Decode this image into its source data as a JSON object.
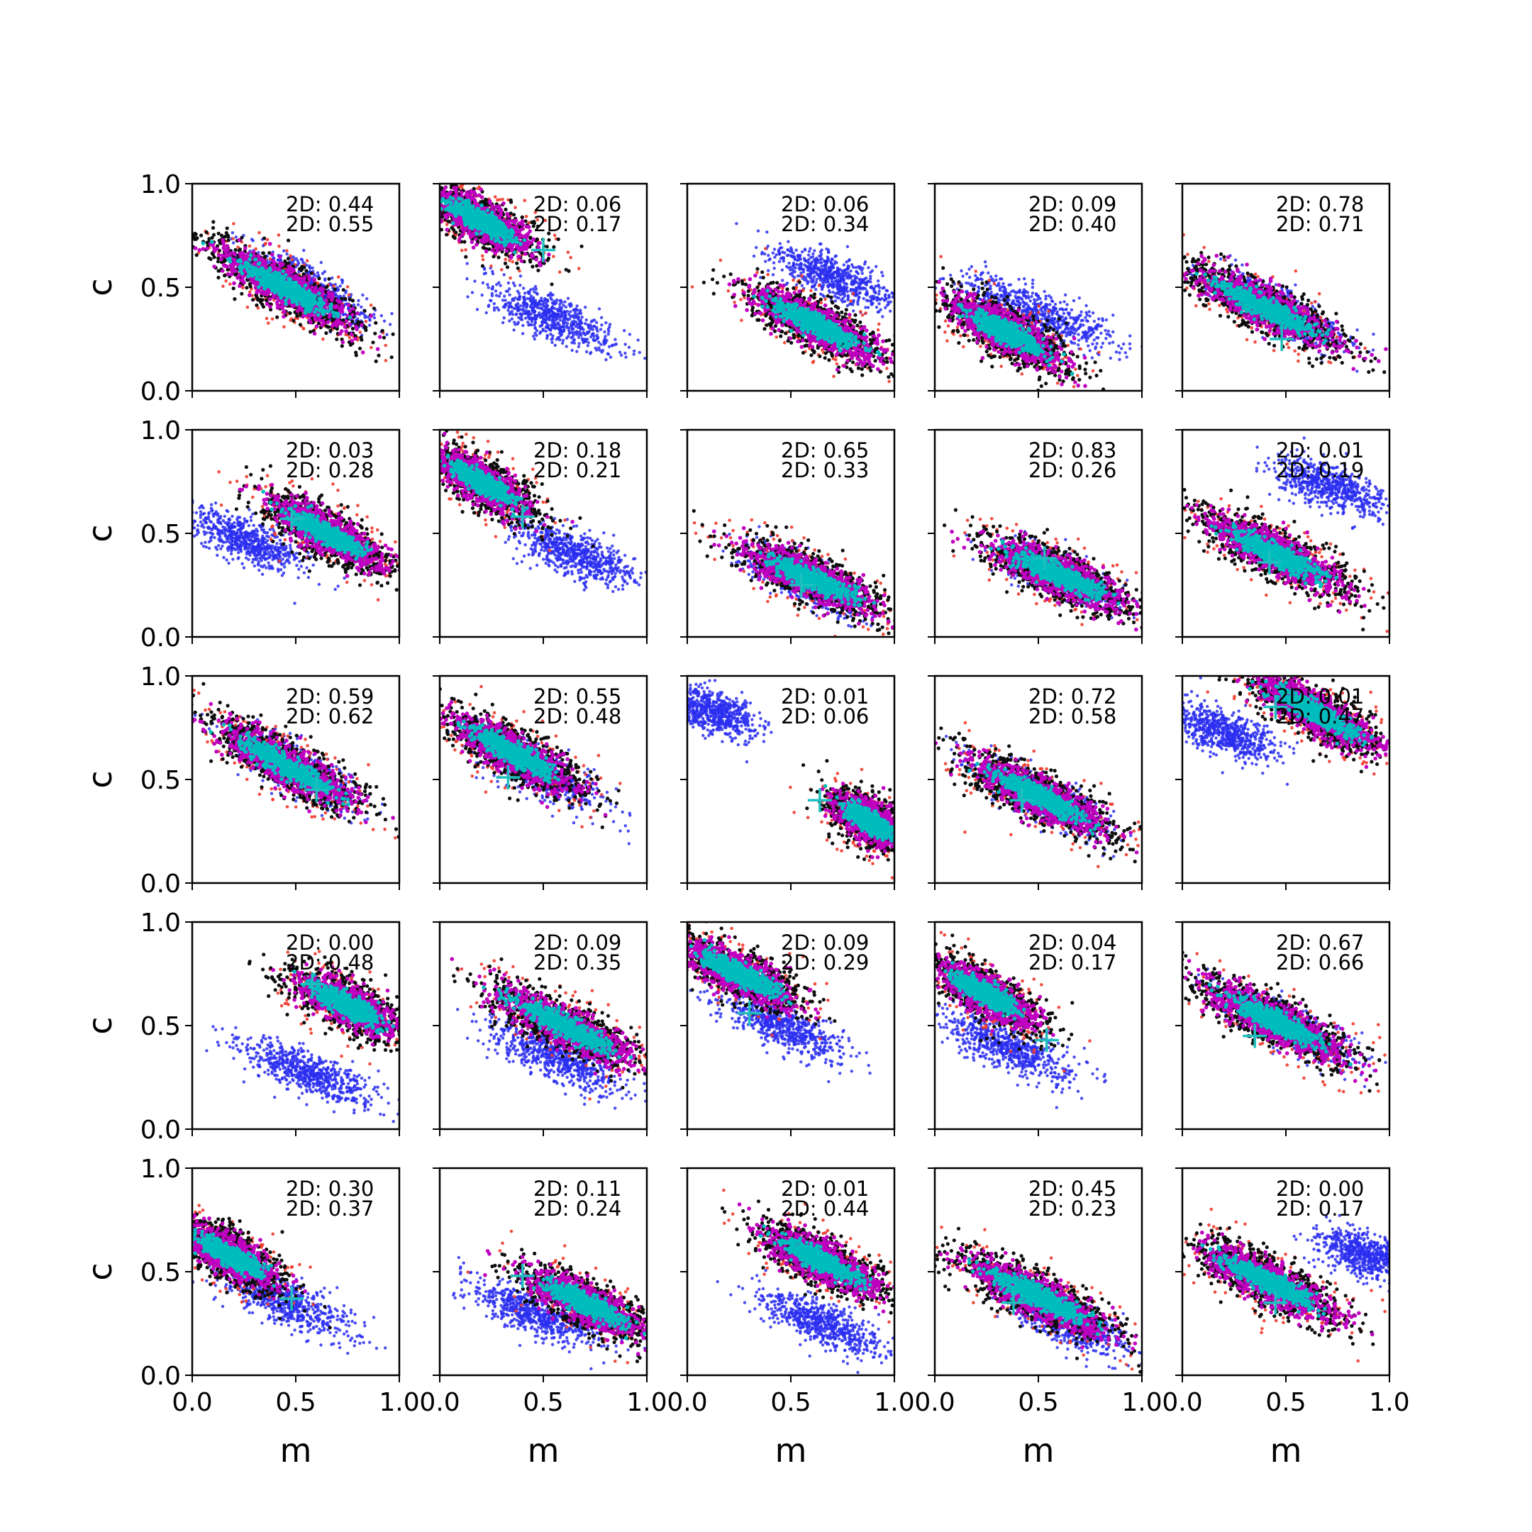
{
  "figure": {
    "rows": 5,
    "cols": 5,
    "shared_x_label": "m",
    "shared_y_label": "c",
    "x_ticks": [
      "0.0",
      "0.5",
      "1.0"
    ],
    "y_ticks": [
      "0.0",
      "0.5",
      "1.0"
    ]
  },
  "colors": {
    "outer": "#f03a2c",
    "mid": "#0d0d0d",
    "inner": "#c000c0",
    "core": "#00bdbd",
    "alt": "#2a2ef0",
    "marker": "#1fbfbf"
  },
  "chart_data": [
    {
      "type": "scatter",
      "row": 0,
      "col": 0,
      "annotations": [
        "2D: 0.44",
        "2D: 0.55"
      ],
      "xlim": [
        0,
        1
      ],
      "ylim": [
        0,
        1
      ],
      "main_center": [
        0.45,
        0.5
      ],
      "main_slope": -0.55,
      "main_spread": 0.55,
      "alt_center": [
        0.55,
        0.5
      ],
      "alt_slope": -0.55,
      "alt_spread": 0.45,
      "marker": null
    },
    {
      "type": "scatter",
      "row": 0,
      "col": 1,
      "annotations": [
        "2D: 0.06",
        "2D: 0.17"
      ],
      "xlim": [
        0,
        1
      ],
      "ylim": [
        0,
        1
      ],
      "main_center": [
        0.2,
        0.82
      ],
      "main_slope": -0.55,
      "main_spread": 0.4,
      "alt_center": [
        0.55,
        0.35
      ],
      "alt_slope": -0.45,
      "alt_spread": 0.45,
      "marker": [
        0.5,
        0.68
      ]
    },
    {
      "type": "scatter",
      "row": 0,
      "col": 2,
      "annotations": [
        "2D: 0.06",
        "2D: 0.34"
      ],
      "xlim": [
        0,
        1
      ],
      "ylim": [
        0,
        1
      ],
      "main_center": [
        0.62,
        0.32
      ],
      "main_slope": -0.5,
      "main_spread": 0.5,
      "alt_center": [
        0.7,
        0.55
      ],
      "alt_slope": -0.4,
      "alt_spread": 0.4,
      "marker": null
    },
    {
      "type": "scatter",
      "row": 0,
      "col": 3,
      "annotations": [
        "2D: 0.09",
        "2D: 0.40"
      ],
      "xlim": [
        0,
        1
      ],
      "ylim": [
        0,
        1
      ],
      "main_center": [
        0.35,
        0.28
      ],
      "main_slope": -0.55,
      "main_spread": 0.45,
      "alt_center": [
        0.5,
        0.38
      ],
      "alt_slope": -0.4,
      "alt_spread": 0.5,
      "marker": null
    },
    {
      "type": "scatter",
      "row": 0,
      "col": 4,
      "annotations": [
        "2D: 0.78",
        "2D: 0.71"
      ],
      "xlim": [
        0,
        1
      ],
      "ylim": [
        0,
        1
      ],
      "main_center": [
        0.4,
        0.4
      ],
      "main_slope": -0.5,
      "main_spread": 0.55,
      "alt_center": [
        0.45,
        0.4
      ],
      "alt_slope": -0.5,
      "alt_spread": 0.45,
      "marker": [
        0.48,
        0.25
      ]
    },
    {
      "type": "scatter",
      "row": 1,
      "col": 0,
      "annotations": [
        "2D: 0.03",
        "2D: 0.28"
      ],
      "xlim": [
        0,
        1
      ],
      "ylim": [
        0,
        1
      ],
      "main_center": [
        0.65,
        0.5
      ],
      "main_slope": -0.55,
      "main_spread": 0.45,
      "alt_center": [
        0.25,
        0.47
      ],
      "alt_slope": -0.45,
      "alt_spread": 0.4,
      "marker": [
        0.48,
        0.57
      ]
    },
    {
      "type": "scatter",
      "row": 1,
      "col": 1,
      "annotations": [
        "2D: 0.18",
        "2D: 0.21"
      ],
      "xlim": [
        0,
        1
      ],
      "ylim": [
        0,
        1
      ],
      "main_center": [
        0.2,
        0.75
      ],
      "main_slope": -0.6,
      "main_spread": 0.4,
      "alt_center": [
        0.65,
        0.4
      ],
      "alt_slope": -0.4,
      "alt_spread": 0.4,
      "marker": [
        0.4,
        0.58
      ]
    },
    {
      "type": "scatter",
      "row": 1,
      "col": 2,
      "annotations": [
        "2D: 0.65",
        "2D: 0.33"
      ],
      "xlim": [
        0,
        1
      ],
      "ylim": [
        0,
        1
      ],
      "main_center": [
        0.6,
        0.28
      ],
      "main_slope": -0.45,
      "main_spread": 0.5,
      "alt_center": [
        0.55,
        0.28
      ],
      "alt_slope": -0.45,
      "alt_spread": 0.4,
      "marker": [
        0.55,
        0.25
      ]
    },
    {
      "type": "scatter",
      "row": 1,
      "col": 3,
      "annotations": [
        "2D: 0.83",
        "2D: 0.26"
      ],
      "xlim": [
        0,
        1
      ],
      "ylim": [
        0,
        1
      ],
      "main_center": [
        0.6,
        0.3
      ],
      "main_slope": -0.45,
      "main_spread": 0.5,
      "alt_center": [
        0.6,
        0.3
      ],
      "alt_slope": -0.45,
      "alt_spread": 0.4,
      "marker": [
        0.53,
        0.38
      ]
    },
    {
      "type": "scatter",
      "row": 1,
      "col": 4,
      "annotations": [
        "2D: 0.01",
        "2D: 0.19"
      ],
      "xlim": [
        0,
        1
      ],
      "ylim": [
        0,
        1
      ],
      "main_center": [
        0.45,
        0.4
      ],
      "main_slope": -0.5,
      "main_spread": 0.55,
      "alt_center": [
        0.72,
        0.72
      ],
      "alt_slope": -0.35,
      "alt_spread": 0.4,
      "marker": [
        0.42,
        0.36
      ]
    },
    {
      "type": "scatter",
      "row": 2,
      "col": 0,
      "annotations": [
        "2D: 0.59",
        "2D: 0.62"
      ],
      "xlim": [
        0,
        1
      ],
      "ylim": [
        0,
        1
      ],
      "main_center": [
        0.45,
        0.57
      ],
      "main_slope": -0.55,
      "main_spread": 0.55,
      "alt_center": [
        0.5,
        0.55
      ],
      "alt_slope": -0.55,
      "alt_spread": 0.45,
      "marker": [
        0.6,
        0.45
      ]
    },
    {
      "type": "scatter",
      "row": 2,
      "col": 1,
      "annotations": [
        "2D: 0.55",
        "2D: 0.48"
      ],
      "xlim": [
        0,
        1
      ],
      "ylim": [
        0,
        1
      ],
      "main_center": [
        0.35,
        0.63
      ],
      "main_slope": -0.55,
      "main_spread": 0.5,
      "alt_center": [
        0.45,
        0.55
      ],
      "alt_slope": -0.55,
      "alt_spread": 0.45,
      "marker": [
        0.33,
        0.51
      ]
    },
    {
      "type": "scatter",
      "row": 2,
      "col": 2,
      "annotations": [
        "2D: 0.01",
        "2D: 0.06"
      ],
      "xlim": [
        0,
        1
      ],
      "ylim": [
        0,
        1
      ],
      "main_center": [
        0.88,
        0.3
      ],
      "main_slope": -0.6,
      "main_spread": 0.3,
      "alt_center": [
        0.12,
        0.83
      ],
      "alt_slope": -0.4,
      "alt_spread": 0.3,
      "marker": [
        0.64,
        0.4
      ]
    },
    {
      "type": "scatter",
      "row": 2,
      "col": 3,
      "annotations": [
        "2D: 0.72",
        "2D: 0.58"
      ],
      "xlim": [
        0,
        1
      ],
      "ylim": [
        0,
        1
      ],
      "main_center": [
        0.5,
        0.42
      ],
      "main_slope": -0.5,
      "main_spread": 0.55,
      "alt_center": [
        0.5,
        0.42
      ],
      "alt_slope": -0.5,
      "alt_spread": 0.45,
      "marker": [
        0.42,
        0.4
      ]
    },
    {
      "type": "scatter",
      "row": 2,
      "col": 4,
      "annotations": [
        "2D: 0.01",
        "2D: 0.47"
      ],
      "xlim": [
        0,
        1
      ],
      "ylim": [
        0,
        1
      ],
      "main_center": [
        0.65,
        0.82
      ],
      "main_slope": -0.55,
      "main_spread": 0.5,
      "alt_center": [
        0.2,
        0.73
      ],
      "alt_slope": -0.4,
      "alt_spread": 0.35,
      "marker": [
        0.45,
        0.85
      ]
    },
    {
      "type": "scatter",
      "row": 3,
      "col": 0,
      "annotations": [
        "2D: 0.00",
        "2D: 0.48"
      ],
      "xlim": [
        0,
        1
      ],
      "ylim": [
        0,
        1
      ],
      "main_center": [
        0.75,
        0.6
      ],
      "main_slope": -0.5,
      "main_spread": 0.4,
      "alt_center": [
        0.55,
        0.28
      ],
      "alt_slope": -0.4,
      "alt_spread": 0.45,
      "marker": [
        0.58,
        0.7
      ]
    },
    {
      "type": "scatter",
      "row": 3,
      "col": 1,
      "annotations": [
        "2D: 0.09",
        "2D: 0.35"
      ],
      "xlim": [
        0,
        1
      ],
      "ylim": [
        0,
        1
      ],
      "main_center": [
        0.6,
        0.5
      ],
      "main_slope": -0.5,
      "main_spread": 0.55,
      "alt_center": [
        0.55,
        0.35
      ],
      "alt_slope": -0.45,
      "alt_spread": 0.45,
      "marker": null
    },
    {
      "type": "scatter",
      "row": 3,
      "col": 2,
      "annotations": [
        "2D: 0.09",
        "2D: 0.29"
      ],
      "xlim": [
        0,
        1
      ],
      "ylim": [
        0,
        1
      ],
      "main_center": [
        0.25,
        0.75
      ],
      "main_slope": -0.5,
      "main_spread": 0.45,
      "alt_center": [
        0.45,
        0.5
      ],
      "alt_slope": -0.45,
      "alt_spread": 0.45,
      "marker": [
        0.3,
        0.56
      ]
    },
    {
      "type": "scatter",
      "row": 3,
      "col": 3,
      "annotations": [
        "2D: 0.04",
        "2D: 0.17"
      ],
      "xlim": [
        0,
        1
      ],
      "ylim": [
        0,
        1
      ],
      "main_center": [
        0.25,
        0.65
      ],
      "main_slope": -0.55,
      "main_spread": 0.4,
      "alt_center": [
        0.35,
        0.4
      ],
      "alt_slope": -0.45,
      "alt_spread": 0.45,
      "marker": [
        0.54,
        0.43
      ]
    },
    {
      "type": "scatter",
      "row": 3,
      "col": 4,
      "annotations": [
        "2D: 0.67",
        "2D: 0.66"
      ],
      "xlim": [
        0,
        1
      ],
      "ylim": [
        0,
        1
      ],
      "main_center": [
        0.45,
        0.52
      ],
      "main_slope": -0.5,
      "main_spread": 0.55,
      "alt_center": [
        0.5,
        0.5
      ],
      "alt_slope": -0.5,
      "alt_spread": 0.45,
      "marker": [
        0.35,
        0.45
      ]
    },
    {
      "type": "scatter",
      "row": 4,
      "col": 0,
      "annotations": [
        "2D: 0.30",
        "2D: 0.37"
      ],
      "xlim": [
        0,
        1
      ],
      "ylim": [
        0,
        1
      ],
      "main_center": [
        0.18,
        0.58
      ],
      "main_slope": -0.55,
      "main_spread": 0.4,
      "alt_center": [
        0.45,
        0.35
      ],
      "alt_slope": -0.45,
      "alt_spread": 0.45,
      "marker": [
        0.48,
        0.37
      ]
    },
    {
      "type": "scatter",
      "row": 4,
      "col": 1,
      "annotations": [
        "2D: 0.11",
        "2D: 0.24"
      ],
      "xlim": [
        0,
        1
      ],
      "ylim": [
        0,
        1
      ],
      "main_center": [
        0.7,
        0.35
      ],
      "main_slope": -0.5,
      "main_spread": 0.45,
      "alt_center": [
        0.45,
        0.3
      ],
      "alt_slope": -0.4,
      "alt_spread": 0.45,
      "marker": [
        0.4,
        0.48
      ]
    },
    {
      "type": "scatter",
      "row": 4,
      "col": 2,
      "annotations": [
        "2D: 0.01",
        "2D: 0.44"
      ],
      "xlim": [
        0,
        1
      ],
      "ylim": [
        0,
        1
      ],
      "main_center": [
        0.65,
        0.55
      ],
      "main_slope": -0.5,
      "main_spread": 0.45,
      "alt_center": [
        0.65,
        0.25
      ],
      "alt_slope": -0.4,
      "alt_spread": 0.4,
      "marker": null
    },
    {
      "type": "scatter",
      "row": 4,
      "col": 3,
      "annotations": [
        "2D: 0.45",
        "2D: 0.23"
      ],
      "xlim": [
        0,
        1
      ],
      "ylim": [
        0,
        1
      ],
      "main_center": [
        0.5,
        0.38
      ],
      "main_slope": -0.5,
      "main_spread": 0.55,
      "alt_center": [
        0.65,
        0.25
      ],
      "alt_slope": -0.45,
      "alt_spread": 0.4,
      "marker": [
        0.38,
        0.35
      ]
    },
    {
      "type": "scatter",
      "row": 4,
      "col": 4,
      "annotations": [
        "2D: 0.00",
        "2D: 0.17"
      ],
      "xlim": [
        0,
        1
      ],
      "ylim": [
        0,
        1
      ],
      "main_center": [
        0.42,
        0.45
      ],
      "main_slope": -0.5,
      "main_spread": 0.55,
      "alt_center": [
        0.88,
        0.58
      ],
      "alt_slope": -0.35,
      "alt_spread": 0.3,
      "marker": [
        0.45,
        0.35
      ]
    }
  ]
}
